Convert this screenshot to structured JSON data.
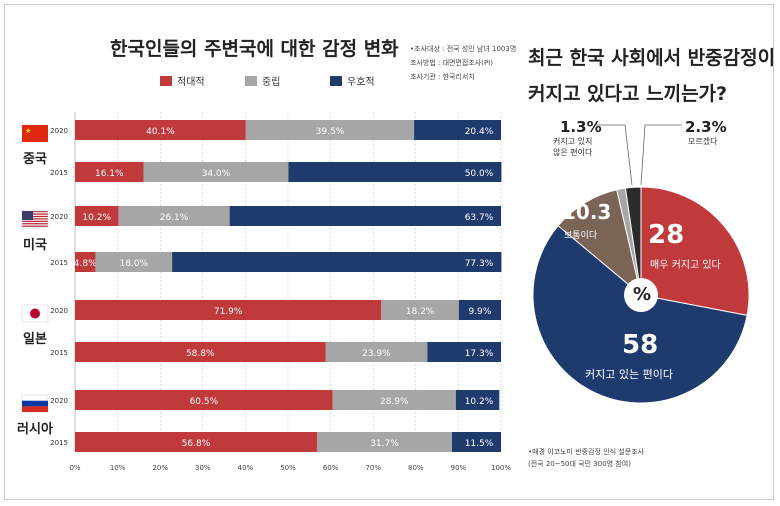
{
  "chart_data": [
    {
      "type": "bar",
      "stacked": true,
      "orientation": "horizontal",
      "title": "한국인들의 주변국에 대한 감정 변화",
      "notes": [
        "•조사대상 : 전국 성인 남녀 1003명",
        "조사방법 : 대면면접조사(PI)",
        "조사기관 : 한국리서치"
      ],
      "legend": [
        {
          "name": "적대적",
          "color": "#c0393b"
        },
        {
          "name": "중립",
          "color": "#a6a6a6"
        },
        {
          "name": "우호적",
          "color": "#1f3b6e"
        }
      ],
      "xlim": [
        0,
        100
      ],
      "xticks": [
        "0%",
        "10%",
        "20%",
        "30%",
        "40%",
        "50%",
        "60%",
        "70%",
        "80%",
        "90%",
        "100%"
      ],
      "groups": [
        {
          "country": "중국",
          "flag": "china",
          "rows": [
            {
              "year": "2020",
              "values": [
                40.1,
                39.5,
                20.4
              ]
            },
            {
              "year": "2015",
              "values": [
                16.1,
                34.0,
                50.0
              ]
            }
          ]
        },
        {
          "country": "미국",
          "flag": "usa",
          "rows": [
            {
              "year": "2020",
              "values": [
                10.2,
                26.1,
                63.7
              ]
            },
            {
              "year": "2015",
              "values": [
                4.8,
                18.0,
                77.3
              ]
            }
          ]
        },
        {
          "country": "일본",
          "flag": "japan",
          "rows": [
            {
              "year": "2020",
              "values": [
                71.9,
                18.2,
                9.9
              ]
            },
            {
              "year": "2015",
              "values": [
                58.8,
                23.9,
                17.3
              ]
            }
          ]
        },
        {
          "country": "러시아",
          "flag": "russia",
          "rows": [
            {
              "year": "2020",
              "values": [
                60.5,
                28.9,
                10.2
              ]
            },
            {
              "year": "2015",
              "values": [
                56.8,
                31.7,
                11.5
              ]
            }
          ]
        }
      ]
    },
    {
      "type": "pie",
      "title": [
        "최근 한국 사회에서 반중감정이",
        "커지고 있다고 느끼는가?"
      ],
      "center_label": "%",
      "slices": [
        {
          "value": 28,
          "label": "28",
          "name": "매우 커지고 있다",
          "color": "#c0393b"
        },
        {
          "value": 58,
          "label": "58",
          "name": "커지고 있는 편이다",
          "color": "#1f3b6e"
        },
        {
          "value": 10.3,
          "label": "10.3",
          "name": "보통이다",
          "color": "#7a6456"
        },
        {
          "value": 1.3,
          "label": "1.3%",
          "name": "커지고 있지 않은 편이다",
          "name_lines": [
            "커지고 있지",
            "않은 편이다"
          ],
          "color": "#a6a6a6"
        },
        {
          "value": 2.3,
          "label": "2.3%",
          "name": "모르겠다",
          "color": "#2b2b2b"
        }
      ],
      "source": [
        "•매경 이코노미 반중감정 인식 설문조사",
        "(전국 20~50대 국민 300명 참여)"
      ]
    }
  ]
}
